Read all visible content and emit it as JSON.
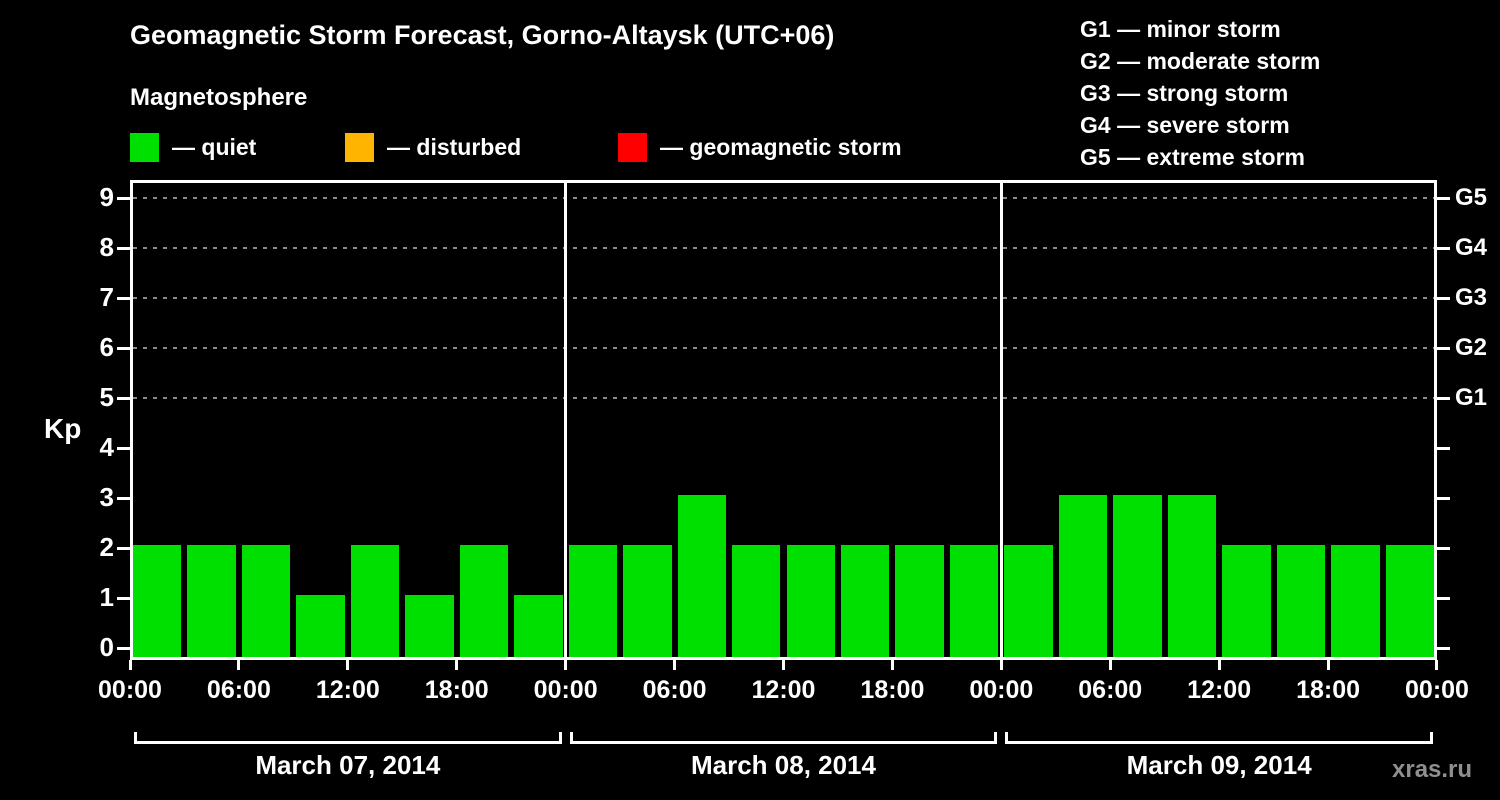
{
  "header": {
    "title": "Geomagnetic Storm Forecast, Gorno-Altaysk (UTC+06)",
    "subtitle": "Magnetosphere"
  },
  "legend": {
    "items": [
      {
        "label": "— quiet",
        "color": "#00e000"
      },
      {
        "label": "— disturbed",
        "color": "#ffb400"
      },
      {
        "label": "— geomagnetic storm",
        "color": "#ff0000"
      }
    ]
  },
  "storm_scale": {
    "items": [
      {
        "text": "G1 — minor storm"
      },
      {
        "text": "G2 — moderate storm"
      },
      {
        "text": "G3 — strong storm"
      },
      {
        "text": "G4 — severe storm"
      },
      {
        "text": "G5 — extreme storm"
      }
    ]
  },
  "watermark": "xras.ru",
  "chart_data": {
    "type": "bar",
    "title": "Geomagnetic Storm Forecast, Gorno-Altaysk (UTC+06)",
    "ylabel": "Kp",
    "ylim": [
      0,
      9.5
    ],
    "y_ticks": [
      0,
      1,
      2,
      3,
      4,
      5,
      6,
      7,
      8,
      9
    ],
    "dashed_gridlines_at_kp": [
      5,
      6,
      7,
      8,
      9
    ],
    "right_axis_labels": [
      {
        "kp": 9,
        "label": "G5"
      },
      {
        "kp": 8,
        "label": "G4"
      },
      {
        "kp": 7,
        "label": "G3"
      },
      {
        "kp": 6,
        "label": "G2"
      },
      {
        "kp": 5,
        "label": "G1"
      }
    ],
    "bar_color": "#00e000",
    "interval_hours": 3,
    "x_tick_labels_per_day": [
      "00:00",
      "06:00",
      "12:00",
      "18:00"
    ],
    "x_end_label": "00:00",
    "days": [
      {
        "date": "March 07, 2014",
        "values": [
          2,
          2,
          2,
          1,
          2,
          1,
          2,
          1
        ]
      },
      {
        "date": "March 08, 2014",
        "values": [
          2,
          2,
          3,
          2,
          2,
          2,
          2,
          2
        ]
      },
      {
        "date": "March 09, 2014",
        "values": [
          2,
          3,
          3,
          3,
          2,
          2,
          2,
          2
        ]
      }
    ],
    "legend_position": "top-left",
    "grid": "dashed horizontal lines at Kp 5–9"
  }
}
